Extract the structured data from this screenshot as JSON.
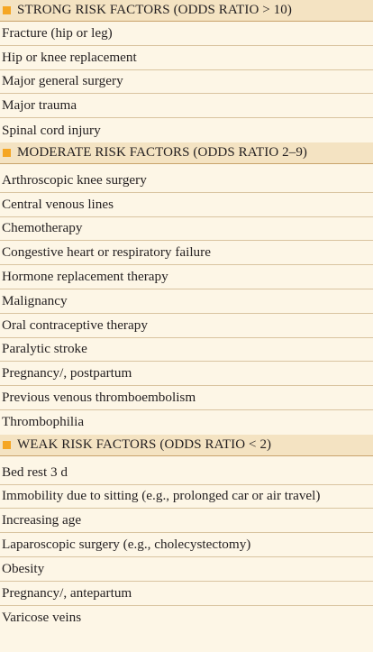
{
  "sections": [
    {
      "header": "STRONG RISK FACTORS (ODDS RATIO > 10)",
      "items": [
        "Fracture (hip or leg)",
        "Hip or knee replacement",
        "Major general surgery",
        "Major trauma",
        "Spinal cord injury"
      ]
    },
    {
      "header": "MODERATE RISK FACTORS (ODDS RATIO 2–9)",
      "items": [
        "Arthroscopic knee surgery",
        "Central venous lines",
        "Chemotherapy",
        "Congestive heart or respiratory failure",
        "Hormone replacement therapy",
        "Malignancy",
        "Oral contraceptive therapy",
        "Paralytic stroke",
        "Pregnancy/, postpartum",
        "Previous venous thromboembolism",
        "Thrombophilia"
      ]
    },
    {
      "header": "WEAK RISK FACTORS (ODDS RATIO < 2)",
      "items": [
        "Bed rest 3 d",
        "Immobility due to sitting (e.g., prolonged car or air travel)",
        "Increasing age",
        "Laparoscopic surgery (e.g., cholecystectomy)",
        "Obesity",
        "Pregnancy/, antepartum",
        "Varicose veins"
      ]
    }
  ],
  "colors": {
    "marker": "#f5a623",
    "header_bg": "#f4e3c2",
    "row_bg": "#fdf6e6"
  }
}
